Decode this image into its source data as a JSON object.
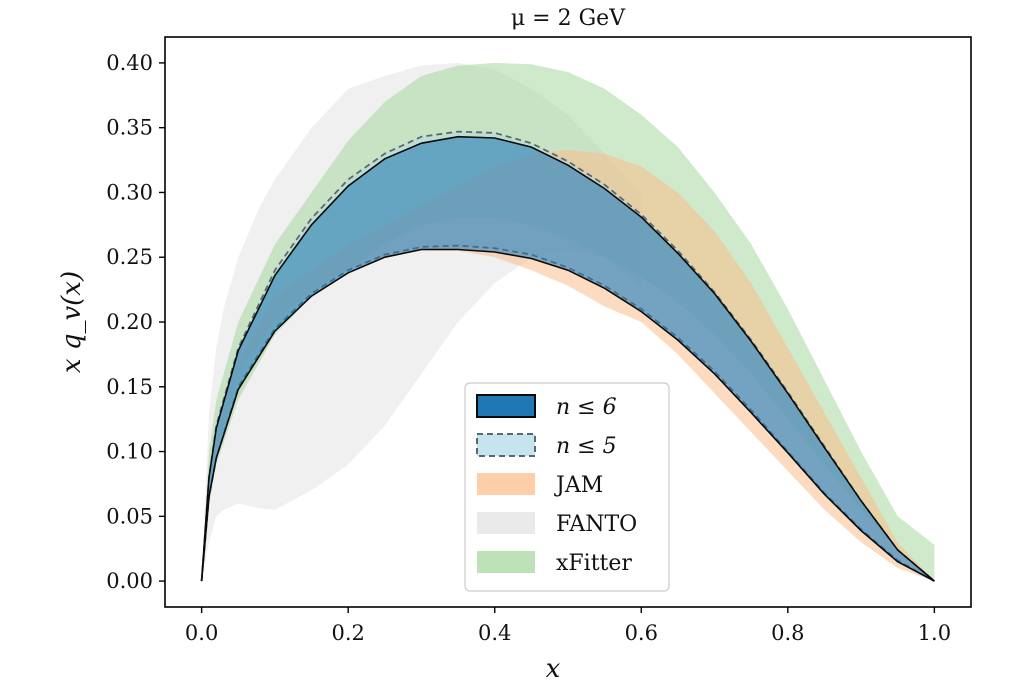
{
  "chart_data": {
    "type": "area",
    "title": "μ = 2 GeV",
    "xlabel": "x",
    "ylabel": "x q_v(x)",
    "xlim": [
      -0.05,
      1.05
    ],
    "ylim": [
      -0.02,
      0.42
    ],
    "xticks": [
      "0.0",
      "0.2",
      "0.4",
      "0.6",
      "0.8",
      "1.0"
    ],
    "yticks": [
      "0.00",
      "0.05",
      "0.10",
      "0.15",
      "0.20",
      "0.25",
      "0.30",
      "0.35",
      "0.40"
    ],
    "grid": false,
    "legend_position": "lower-center",
    "series": [
      {
        "name": "FANTO",
        "color": "#e3e3e3",
        "x": [
          0.0,
          0.01,
          0.02,
          0.03,
          0.05,
          0.08,
          0.1,
          0.15,
          0.2,
          0.25,
          0.3,
          0.35,
          0.4,
          0.45,
          0.5,
          0.55,
          0.6
        ],
        "lower": [
          0.0,
          0.03,
          0.05,
          0.055,
          0.06,
          0.056,
          0.055,
          0.07,
          0.09,
          0.12,
          0.16,
          0.2,
          0.23,
          0.25,
          0.255,
          0.25,
          0.225
        ],
        "upper": [
          0.0,
          0.13,
          0.18,
          0.21,
          0.25,
          0.29,
          0.31,
          0.35,
          0.38,
          0.39,
          0.398,
          0.4,
          0.395,
          0.38,
          0.36,
          0.33,
          0.3
        ]
      },
      {
        "name": "xFitter",
        "color": "#a8d8a0",
        "x": [
          0.0,
          0.01,
          0.02,
          0.05,
          0.1,
          0.15,
          0.2,
          0.25,
          0.3,
          0.35,
          0.4,
          0.45,
          0.5,
          0.55,
          0.6,
          0.65,
          0.7,
          0.75,
          0.8,
          0.85,
          0.9,
          0.95,
          1.0
        ],
        "lower": [
          0.0,
          0.06,
          0.09,
          0.14,
          0.19,
          0.22,
          0.24,
          0.26,
          0.275,
          0.28,
          0.28,
          0.275,
          0.265,
          0.25,
          0.235,
          0.215,
          0.19,
          0.16,
          0.125,
          0.09,
          0.055,
          0.025,
          0.0
        ],
        "upper": [
          0.0,
          0.1,
          0.14,
          0.2,
          0.26,
          0.3,
          0.34,
          0.37,
          0.39,
          0.398,
          0.4,
          0.399,
          0.393,
          0.38,
          0.36,
          0.335,
          0.3,
          0.26,
          0.21,
          0.155,
          0.1,
          0.05,
          0.028
        ]
      },
      {
        "name": "JAM",
        "color": "#fbbe8c",
        "x": [
          0.0,
          0.01,
          0.02,
          0.05,
          0.1,
          0.15,
          0.2,
          0.25,
          0.3,
          0.35,
          0.4,
          0.45,
          0.5,
          0.55,
          0.6,
          0.65,
          0.7,
          0.75,
          0.8,
          0.85,
          0.9,
          0.95,
          1.0
        ],
        "lower": [
          0.0,
          0.07,
          0.1,
          0.16,
          0.2,
          0.225,
          0.24,
          0.25,
          0.255,
          0.255,
          0.25,
          0.24,
          0.228,
          0.212,
          0.2,
          0.175,
          0.145,
          0.115,
          0.085,
          0.055,
          0.03,
          0.01,
          0.0
        ],
        "upper": [
          0.0,
          0.07,
          0.11,
          0.17,
          0.22,
          0.24,
          0.26,
          0.275,
          0.29,
          0.305,
          0.32,
          0.33,
          0.333,
          0.33,
          0.32,
          0.3,
          0.27,
          0.23,
          0.18,
          0.13,
          0.08,
          0.03,
          0.0
        ]
      },
      {
        "name": "n ≤ 5",
        "color": "#add8e6",
        "edge": "#5c6870",
        "x": [
          0.0,
          0.01,
          0.02,
          0.05,
          0.1,
          0.15,
          0.2,
          0.25,
          0.3,
          0.35,
          0.4,
          0.45,
          0.5,
          0.55,
          0.6,
          0.65,
          0.7,
          0.75,
          0.8,
          0.85,
          0.9,
          0.95,
          1.0
        ],
        "lower": [
          0.0,
          0.065,
          0.095,
          0.15,
          0.195,
          0.222,
          0.24,
          0.252,
          0.258,
          0.259,
          0.257,
          0.252,
          0.242,
          0.228,
          0.21,
          0.188,
          0.162,
          0.132,
          0.1,
          0.068,
          0.04,
          0.016,
          0.0
        ],
        "upper": [
          0.0,
          0.08,
          0.12,
          0.18,
          0.24,
          0.28,
          0.31,
          0.33,
          0.343,
          0.347,
          0.346,
          0.338,
          0.324,
          0.306,
          0.283,
          0.255,
          0.223,
          0.186,
          0.146,
          0.104,
          0.062,
          0.024,
          0.0
        ]
      },
      {
        "name": "n ≤ 6",
        "color": "#1f77b4",
        "edge": "#0a0a0a",
        "x": [
          0.0,
          0.01,
          0.02,
          0.05,
          0.1,
          0.15,
          0.2,
          0.25,
          0.3,
          0.35,
          0.4,
          0.45,
          0.5,
          0.55,
          0.6,
          0.65,
          0.7,
          0.75,
          0.8,
          0.85,
          0.9,
          0.95,
          1.0
        ],
        "lower": [
          0.0,
          0.065,
          0.095,
          0.148,
          0.193,
          0.22,
          0.238,
          0.25,
          0.256,
          0.256,
          0.254,
          0.249,
          0.24,
          0.226,
          0.208,
          0.186,
          0.16,
          0.13,
          0.099,
          0.067,
          0.039,
          0.015,
          0.0
        ],
        "upper": [
          0.0,
          0.08,
          0.118,
          0.178,
          0.236,
          0.275,
          0.305,
          0.326,
          0.338,
          0.343,
          0.342,
          0.335,
          0.321,
          0.303,
          0.281,
          0.253,
          0.222,
          0.185,
          0.145,
          0.103,
          0.062,
          0.024,
          0.0
        ]
      }
    ],
    "legend": [
      "n ≤ 6",
      "n ≤ 5",
      "JAM",
      "FANTO",
      "xFitter"
    ]
  }
}
